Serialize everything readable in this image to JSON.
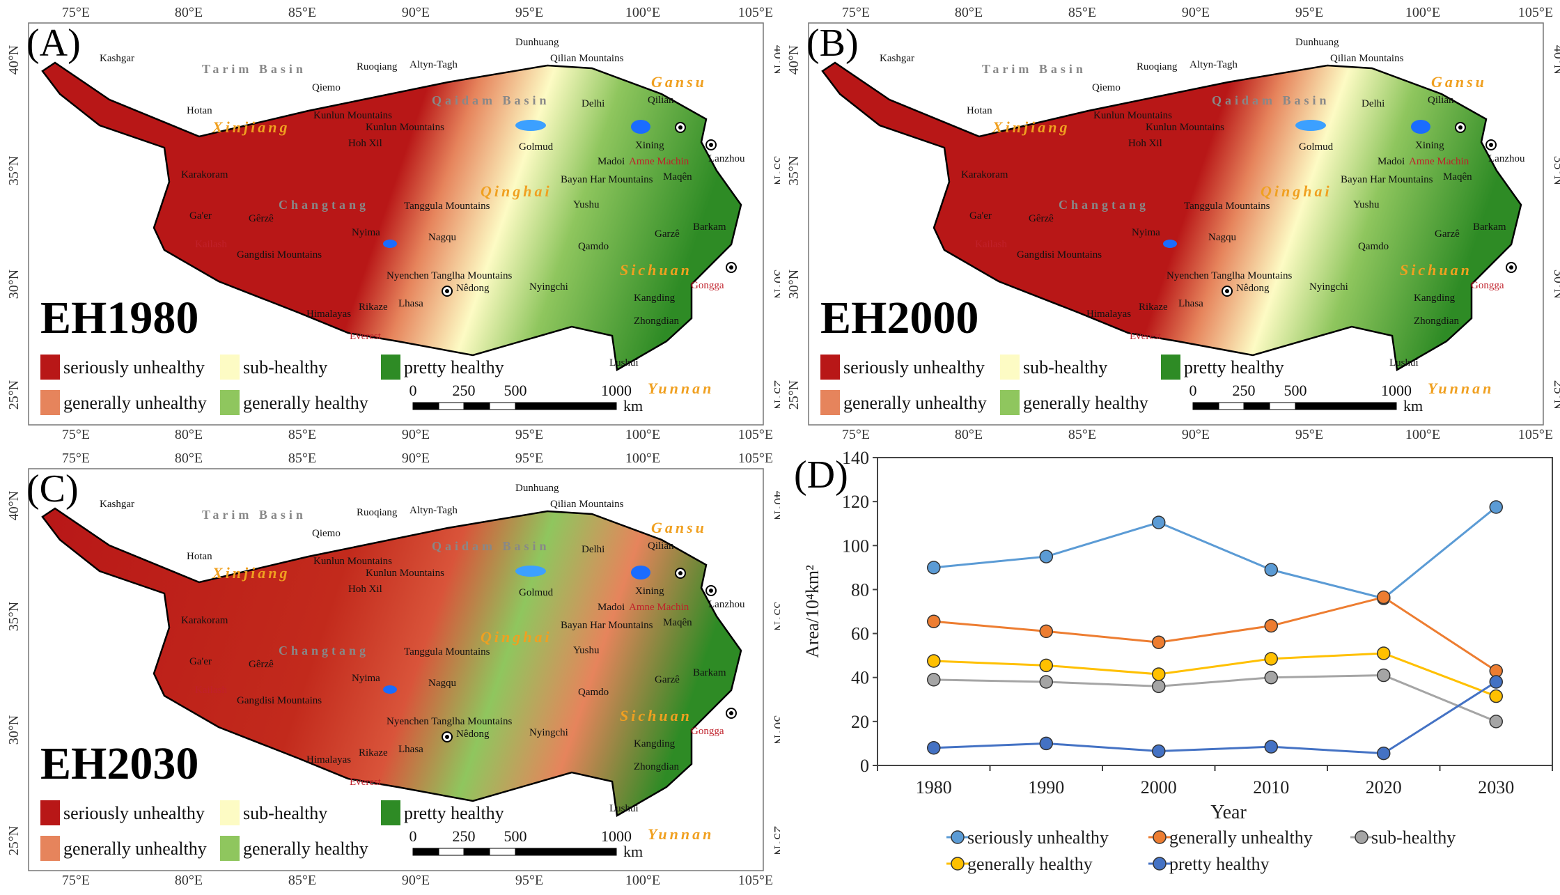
{
  "maps": [
    {
      "panel_label": "(A)",
      "title": "EH1980"
    },
    {
      "panel_label": "(B)",
      "title": "EH2000"
    },
    {
      "panel_label": "(C)",
      "title": "EH2030"
    }
  ],
  "map_common": {
    "lon_ticks": [
      "75°E",
      "80°E",
      "85°E",
      "90°E",
      "95°E",
      "100°E",
      "105°E"
    ],
    "lat_ticks": [
      "40°N",
      "35°N",
      "30°N",
      "25°N"
    ],
    "legend": [
      {
        "label": "seriously unhealthy",
        "color": "#b81717"
      },
      {
        "label": "sub-healthy",
        "color": "#fdfbc4"
      },
      {
        "label": "pretty healthy",
        "color": "#2e8b25"
      },
      {
        "label": "generally unhealthy",
        "color": "#e6845c"
      },
      {
        "label": "generally healthy",
        "color": "#8fc65e"
      }
    ],
    "scale_bar": {
      "ticks": [
        "0",
        "250",
        "500",
        "1000"
      ],
      "unit": "km"
    },
    "place_labels": [
      "Kashgar",
      "Tarim Basin",
      "Dunhuang",
      "Ruoqiang",
      "Altyn-Tagh",
      "Qilian Mountains",
      "Gansu",
      "Qiemo",
      "Hotan",
      "Xinjiang",
      "Kunlun Mountains",
      "Kunlun Mountains",
      "Qaidam Basin",
      "Delhi",
      "Qilian",
      "Xining",
      "Lanzhou",
      "Hoh Xil",
      "Golmud",
      "Madoi",
      "Amne Machin",
      "Maqên",
      "Karakoram",
      "Bayan Har Mountains",
      "Qinghai",
      "Changtang",
      "Tanggula Mountains",
      "Yushu",
      "Ga'er",
      "Gêrzê",
      "Nyima",
      "Nagqu",
      "Garzê",
      "Barkam",
      "Qamdo",
      "Gangdisi Mountains",
      "Nyenchen Tanglha Mountains",
      "Sichuan",
      "Gongga",
      "Nêdong",
      "Nyingchi",
      "Kangding",
      "Rikaze",
      "Lhasa",
      "Himalayas",
      "Zhongdian",
      "Everest",
      "Lushui",
      "Yunnan",
      "Kailash"
    ]
  },
  "chart_data": {
    "type": "line",
    "panel_label": "(D)",
    "x": [
      1980,
      1990,
      2000,
      2010,
      2020,
      2030
    ],
    "xlabel": "Year",
    "ylabel": "Area/10⁴km²",
    "ylim": [
      0,
      140
    ],
    "yticks": [
      0,
      20,
      40,
      60,
      80,
      100,
      120,
      140
    ],
    "grid": false,
    "legend_position": "bottom",
    "series": [
      {
        "name": "seriously unhealthy",
        "color": "#5b9bd5",
        "values": [
          90,
          95,
          110.5,
          89,
          76,
          117.5
        ]
      },
      {
        "name": "generally unhealthy",
        "color": "#ed7d31",
        "values": [
          65.5,
          61,
          56,
          63.5,
          76.5,
          43
        ]
      },
      {
        "name": "sub-healthy",
        "color": "#a5a5a5",
        "values": [
          39,
          38,
          36,
          40,
          41,
          20
        ]
      },
      {
        "name": "generally healthy",
        "color": "#ffc000",
        "values": [
          47.5,
          45.5,
          41.5,
          48.5,
          51,
          31.5
        ]
      },
      {
        "name": "pretty healthy",
        "color": "#4472c4",
        "values": [
          8,
          10,
          6.5,
          8.5,
          5.5,
          38
        ]
      }
    ]
  }
}
